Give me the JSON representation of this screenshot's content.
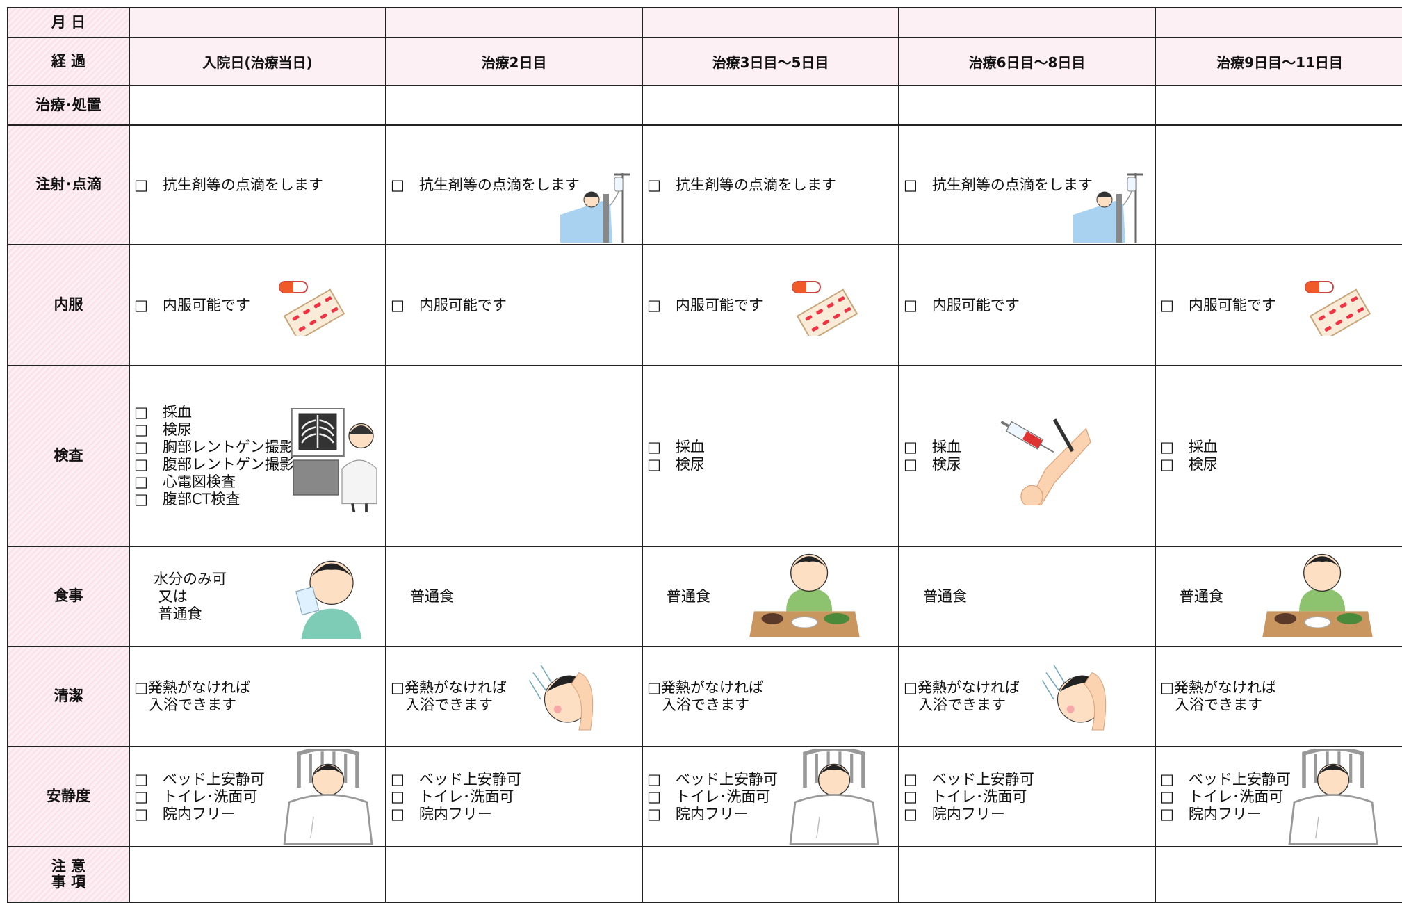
{
  "date_row": {
    "label": "月 日"
  },
  "progress_row": {
    "label": "経 過",
    "days": [
      "入院日(治療当日)",
      "治療2日目",
      "治療3日目～5日目",
      "治療6日目～8日目",
      "治療9日目～11日目"
    ]
  },
  "rows": [
    {
      "label": [
        "治療･処置"
      ]
    },
    {
      "label": [
        "注射･点滴"
      ],
      "cells": [
        [
          "□　抗生剤等の点滴をします"
        ],
        [
          "□　抗生剤等の点滴をします"
        ],
        [
          "□　抗生剤等の点滴をします"
        ],
        [
          "□　抗生剤等の点滴をします"
        ],
        null
      ]
    },
    {
      "label": [
        "内服"
      ],
      "cells": [
        [
          "□　内服可能です"
        ],
        [
          "□　内服可能です"
        ],
        [
          "□　内服可能です"
        ],
        [
          "□　内服可能です"
        ],
        [
          "□　内服可能です"
        ]
      ]
    },
    {
      "label": [
        "検査"
      ],
      "cells": [
        [
          "□　採血",
          "□　検尿",
          "□　胸部レントゲン撮影",
          "□　腹部レントゲン撮影",
          "□　心電図検査",
          "□　腹部CT検査"
        ],
        null,
        [
          "□　採血",
          "□　検尿"
        ],
        [
          "□　採血",
          "□　検尿"
        ],
        [
          "□　採血",
          "□　検尿"
        ]
      ]
    },
    {
      "label": [
        "食事"
      ],
      "cells": [
        [
          "水分のみ可",
          " 又は",
          " 普通食"
        ],
        [
          "普通食"
        ],
        [
          "普通食"
        ],
        [
          "普通食"
        ],
        [
          "普通食"
        ]
      ]
    },
    {
      "label": [
        "清潔"
      ],
      "cells": [
        [
          "□発熱がなければ",
          "　入浴できます"
        ],
        [
          "□発熱がなければ",
          "　入浴できます"
        ],
        [
          "□発熱がなければ",
          "　入浴できます"
        ],
        [
          "□発熱がなければ",
          "　入浴できます"
        ],
        [
          "□発熱がなければ",
          "　入浴できます"
        ]
      ]
    },
    {
      "label": [
        "安静度"
      ],
      "cells": [
        [
          "□　ベッド上安静可",
          "□　トイレ･洗面可",
          "□　院内フリー"
        ],
        [
          "□　ベッド上安静可",
          "□　トイレ･洗面可",
          "□　院内フリー"
        ],
        [
          "□　ベッド上安静可",
          "□　トイレ･洗面可",
          "□　院内フリー"
        ],
        [
          "□　ベッド上安静可",
          "□　トイレ･洗面可",
          "□　院内フリー"
        ],
        [
          "□　ベッド上安静可",
          "□　トイレ･洗面可",
          "□　院内フリー"
        ]
      ]
    },
    {
      "label": [
        "注 意",
        "事 項"
      ]
    }
  ]
}
